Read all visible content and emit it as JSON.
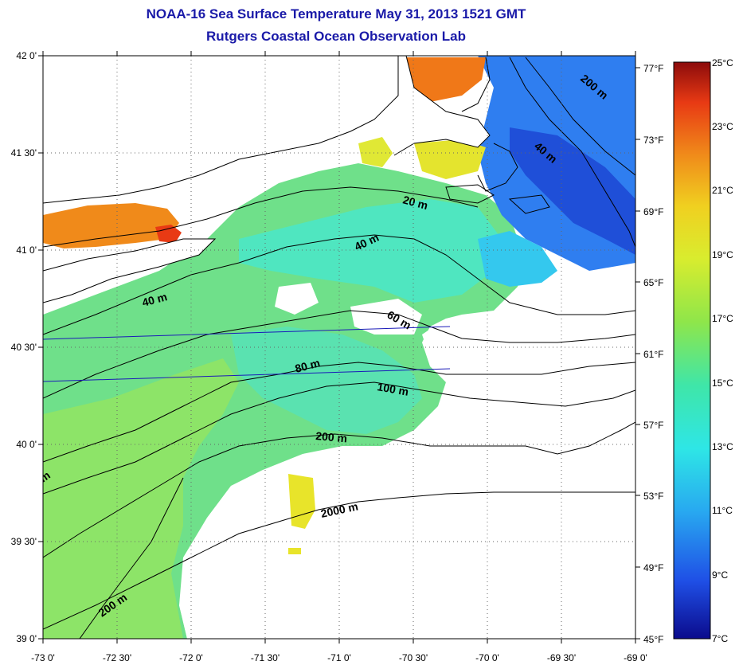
{
  "title": "NOAA-16 Sea Surface Temperature May 31, 2013 1521 GMT",
  "subtitle": "Rutgers Coastal Ocean Observation Lab",
  "map": {
    "lat_labels": [
      "42 0'",
      "41 30'",
      "41 0'",
      "40 30'",
      "40 0'",
      "39 30'",
      "39 0'"
    ],
    "lon_labels": [
      "-73 0'",
      "-72 30'",
      "-72 0'",
      "-71 30'",
      "-71 0'",
      "-70 30'",
      "-70 0'",
      "-69 30'",
      "-69 0'"
    ],
    "fahrenheit_labels": [
      "77°F",
      "73°F",
      "69°F",
      "65°F",
      "61°F",
      "57°F",
      "53°F",
      "49°F",
      "45°F"
    ],
    "lat_range": [
      39.0,
      42.0
    ],
    "lon_range": [
      -73.0,
      -69.0
    ],
    "grid": "dotted",
    "depth_labels": [
      "200 m",
      "40 m",
      "20 m",
      "40 m",
      "40 m",
      "60 m",
      "80 m",
      "100 m",
      "200 m",
      "2000 m",
      "200 m",
      "m"
    ]
  },
  "colorbar": {
    "labels": [
      "25°C",
      "23°C",
      "21°C",
      "19°C",
      "17°C",
      "15°C",
      "13°C",
      "11°C",
      "9°C",
      "7°C"
    ],
    "range_c": [
      7,
      25
    ],
    "colors": [
      "#0b0b8c",
      "#1f4fe6",
      "#28a8f0",
      "#2ee6e6",
      "#3fe6a8",
      "#8fe64a",
      "#d9ec2e",
      "#f0d020",
      "#f08a1a",
      "#e83a14",
      "#8c0b0b"
    ]
  }
}
